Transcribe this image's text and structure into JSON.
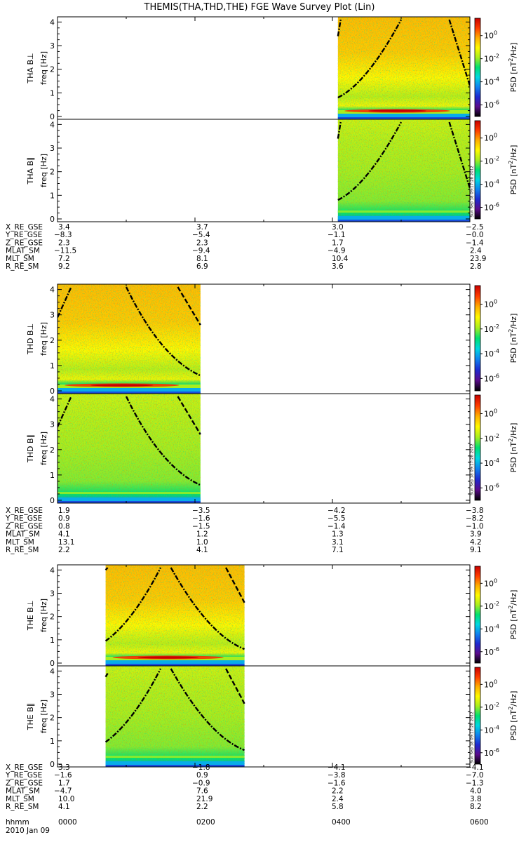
{
  "title": "THEMIS(THA,THD,THE) FGE Wave Survey Plot (Lin)",
  "chart_data": {
    "type": "heatmap",
    "title": "THEMIS(THA,THD,THE) FGE Wave Survey Plot (Lin)",
    "x_axis": {
      "row_label": "hhmm",
      "date_label": "2010 Jan 09",
      "ticks": [
        "0000",
        "0200",
        "0400",
        "0600"
      ],
      "range_hours": [
        0,
        6
      ]
    },
    "y_axis": {
      "ylabel": "freq [Hz]",
      "ylim": [
        0,
        4.1
      ],
      "ticks": [
        "0",
        "1",
        "2",
        "3",
        "4"
      ]
    },
    "colorbar": {
      "label_prefix": "PSD [nT",
      "label_sup": "2",
      "label_suffix": "/Hz]",
      "scale": "log",
      "range_exp": [
        -7,
        1.5
      ],
      "ticks": [
        {
          "base": "10",
          "exp": "0",
          "value_exp": 0
        },
        {
          "base": "10",
          "exp": "-2",
          "value_exp": -2
        },
        {
          "base": "10",
          "exp": "-4",
          "value_exp": -4
        },
        {
          "base": "10",
          "exp": "-6",
          "value_exp": -6
        }
      ],
      "colors": [
        "#000000",
        "#5a0a8c",
        "#1e2ad0",
        "#0f82ef",
        "#00d8e0",
        "#00e070",
        "#a8ee1e",
        "#fffa00",
        "#ffae00",
        "#ff3c00",
        "#c80000"
      ]
    },
    "timestamp": "Sun Sep 18 09:17:28 2012",
    "probes": [
      {
        "name": "THA",
        "data_hours": [
          4.08,
          6.0
        ],
        "panels": [
          {
            "label": "THA B⊥",
            "component": "perp",
            "lines": [
              {
                "style": "dashdot",
                "points": [
                  [
                    4.08,
                    0.8
                  ],
                  [
                    4.5,
                    1.4
                  ],
                  [
                    5.0,
                    4.1
                  ]
                ]
              },
              {
                "style": "dashdot",
                "points": [
                  [
                    4.08,
                    3.4
                  ],
                  [
                    4.12,
                    4.1
                  ]
                ]
              },
              {
                "style": "dashdot",
                "points": [
                  [
                    5.7,
                    4.1
                  ],
                  [
                    6.0,
                    1.3
                  ]
                ]
              }
            ]
          },
          {
            "label": "THA B∥",
            "component": "par",
            "lines": [
              {
                "style": "dashdot",
                "points": [
                  [
                    4.08,
                    0.8
                  ],
                  [
                    4.5,
                    1.4
                  ],
                  [
                    5.0,
                    4.1
                  ]
                ]
              },
              {
                "style": "dashdot",
                "points": [
                  [
                    4.08,
                    3.4
                  ],
                  [
                    4.12,
                    4.1
                  ]
                ]
              },
              {
                "style": "dashdot",
                "points": [
                  [
                    5.7,
                    4.1
                  ],
                  [
                    6.0,
                    1.3
                  ]
                ]
              }
            ]
          }
        ],
        "ephemeris": {
          "labels": [
            "X_RE_GSE",
            "Y_RE_GSE",
            "Z_RE_GSE",
            "MLAT_SM",
            "MLT_SM",
            "R_RE_SM"
          ],
          "columns": [
            [
              "3.4",
              "-8.3",
              "2.3",
              "-11.5",
              "7.2",
              "9.2"
            ],
            [
              "3.7",
              "-5.4",
              "2.3",
              "-9.4",
              "8.1",
              "6.9"
            ],
            [
              "3.0",
              "-1.1",
              "1.7",
              "-4.9",
              "10.4",
              "3.6"
            ],
            [
              "-2.5",
              "-0.0",
              "-1.4",
              "2.4",
              "23.9",
              "2.8"
            ]
          ]
        }
      },
      {
        "name": "THD",
        "data_hours": [
          0.0,
          2.08
        ],
        "panels": [
          {
            "label": "THD B⊥",
            "component": "perp",
            "lines": [
              {
                "style": "dashdot",
                "points": [
                  [
                    0.0,
                    2.9
                  ],
                  [
                    0.2,
                    4.1
                  ]
                ]
              },
              {
                "style": "dashdot",
                "points": [
                  [
                    1.0,
                    4.1
                  ],
                  [
                    1.5,
                    1.3
                  ],
                  [
                    2.08,
                    0.6
                  ]
                ]
              },
              {
                "style": "dashed",
                "points": [
                  [
                    1.75,
                    4.1
                  ],
                  [
                    2.08,
                    2.6
                  ]
                ]
              }
            ]
          },
          {
            "label": "THD B∥",
            "component": "par",
            "lines": [
              {
                "style": "dashdot",
                "points": [
                  [
                    0.0,
                    2.9
                  ],
                  [
                    0.2,
                    4.1
                  ]
                ]
              },
              {
                "style": "dashdot",
                "points": [
                  [
                    1.0,
                    4.1
                  ],
                  [
                    1.5,
                    1.3
                  ],
                  [
                    2.08,
                    0.6
                  ]
                ]
              },
              {
                "style": "dashed",
                "points": [
                  [
                    1.75,
                    4.1
                  ],
                  [
                    2.08,
                    2.6
                  ]
                ]
              }
            ]
          }
        ],
        "ephemeris": {
          "labels": [
            "X_RE_GSE",
            "Y_RE_GSE",
            "Z_RE_GSE",
            "MLAT_SM",
            "MLT_SM",
            "R_RE_SM"
          ],
          "columns": [
            [
              "1.9",
              "0.9",
              "0.8",
              "4.1",
              "13.1",
              "2.2"
            ],
            [
              "-3.5",
              "-1.6",
              "-1.5",
              "1.2",
              "1.0",
              "4.1"
            ],
            [
              "-4.2",
              "-5.5",
              "-1.4",
              "1.3",
              "3.1",
              "7.1"
            ],
            [
              "-3.8",
              "-8.2",
              "-1.0",
              "3.9",
              "4.2",
              "9.1"
            ]
          ]
        }
      },
      {
        "name": "THE",
        "data_hours": [
          0.7,
          2.72
        ],
        "panels": [
          {
            "label": "THE B⊥",
            "component": "perp",
            "lines": [
              {
                "style": "dashdot",
                "points": [
                  [
                    0.7,
                    0.95
                  ],
                  [
                    1.1,
                    1.8
                  ],
                  [
                    1.5,
                    4.1
                  ]
                ]
              },
              {
                "style": "dashdot",
                "points": [
                  [
                    0.7,
                    4.0
                  ],
                  [
                    0.73,
                    4.1
                  ]
                ]
              },
              {
                "style": "dashdot",
                "points": [
                  [
                    1.65,
                    4.1
                  ],
                  [
                    2.2,
                    1.2
                  ],
                  [
                    2.72,
                    0.6
                  ]
                ]
              },
              {
                "style": "dashed",
                "points": [
                  [
                    2.45,
                    4.1
                  ],
                  [
                    2.72,
                    2.6
                  ]
                ]
              }
            ]
          },
          {
            "label": "THE B∥",
            "component": "par",
            "lines": [
              {
                "style": "dashdot",
                "points": [
                  [
                    0.7,
                    0.95
                  ],
                  [
                    1.1,
                    1.8
                  ],
                  [
                    1.5,
                    4.1
                  ]
                ]
              },
              {
                "style": "dashdot",
                "points": [
                  [
                    0.7,
                    3.75
                  ],
                  [
                    0.73,
                    3.9
                  ]
                ]
              },
              {
                "style": "dashdot",
                "points": [
                  [
                    1.65,
                    4.1
                  ],
                  [
                    2.2,
                    1.2
                  ],
                  [
                    2.72,
                    0.6
                  ]
                ]
              },
              {
                "style": "dashed",
                "points": [
                  [
                    2.45,
                    4.1
                  ],
                  [
                    2.72,
                    2.6
                  ]
                ]
              }
            ]
          }
        ],
        "ephemeris": {
          "labels": [
            "X_RE_GSE",
            "Y_RE_GSE",
            "Z_RE_GSE",
            "MLAT_SM",
            "MLT_SM",
            "R_RE_SM"
          ],
          "columns": [
            [
              "3.3",
              "-1.6",
              "1.7",
              "-4.7",
              "10.0",
              "4.1"
            ],
            [
              "-1.8",
              "0.9",
              "-0.9",
              "7.6",
              "21.9",
              "2.2"
            ],
            [
              "-4.1",
              "-3.8",
              "-1.6",
              "2.2",
              "2.4",
              "5.8"
            ],
            [
              "-4.1",
              "-7.0",
              "-1.3",
              "4.0",
              "3.8",
              "8.2"
            ]
          ]
        }
      }
    ]
  }
}
